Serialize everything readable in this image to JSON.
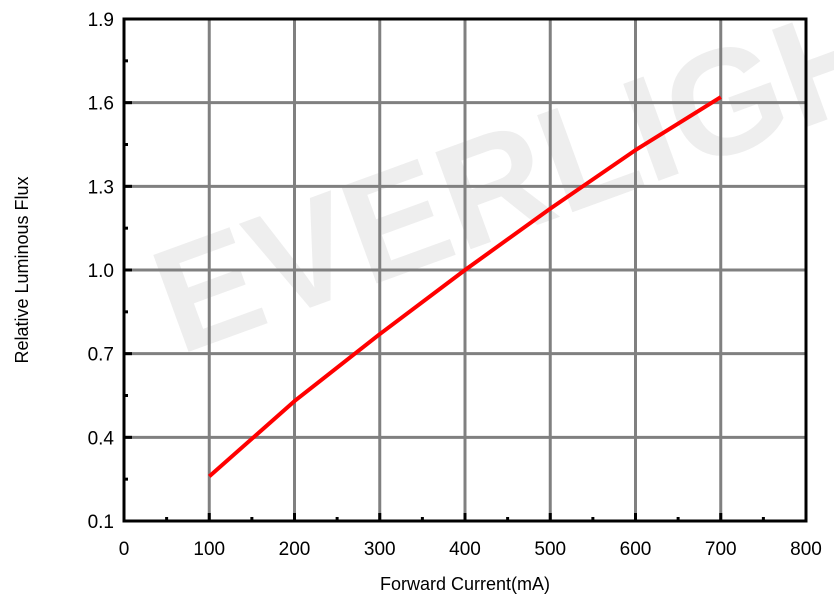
{
  "watermark": "EVERLIGHT",
  "chart_data": {
    "type": "line",
    "xlabel": "Forward Current(mA)",
    "ylabel": "Relative Luminous Flux",
    "xlim": [
      0,
      800
    ],
    "ylim": [
      0.1,
      1.9
    ],
    "xticks": [
      0,
      100,
      200,
      300,
      400,
      500,
      600,
      700,
      800
    ],
    "xtick_labels": [
      "0",
      "100",
      "200",
      "300",
      "400",
      "500",
      "600",
      "700",
      "800"
    ],
    "yticks": [
      0.1,
      0.4,
      0.7,
      1.0,
      1.3,
      1.6,
      1.9
    ],
    "ytick_labels": [
      "0.1",
      "0.4",
      "0.7",
      "1.0",
      "1.3",
      "1.6",
      "1.9"
    ],
    "grid": true,
    "series": [
      {
        "color": "#ff0000",
        "x": [
          100,
          200,
          300,
          400,
          500,
          600,
          700
        ],
        "y": [
          0.26,
          0.53,
          0.77,
          1.0,
          1.22,
          1.43,
          1.62
        ]
      }
    ]
  }
}
